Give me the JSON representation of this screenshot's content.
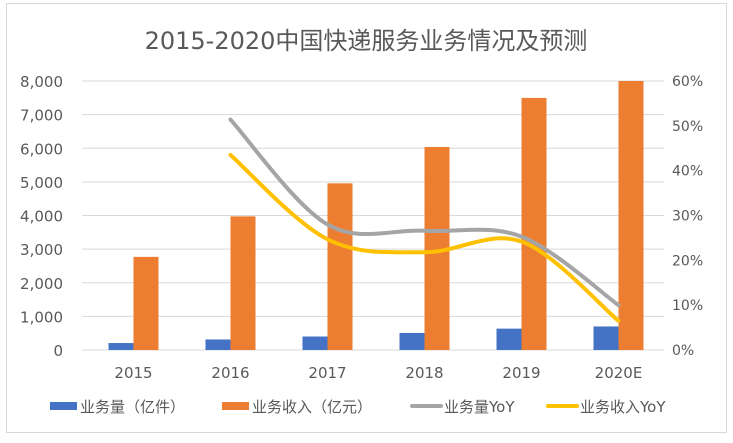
{
  "chart_data": {
    "type": "bar",
    "title": "2015-2020中国快递服务业务情况及预测",
    "categories": [
      "2015",
      "2016",
      "2017",
      "2018",
      "2019",
      "2020E"
    ],
    "series": [
      {
        "name": "业务量（亿件）",
        "type": "bar",
        "axis": "left",
        "color": "#4472C4",
        "values": [
          207,
          313,
          401,
          507,
          635,
          700
        ]
      },
      {
        "name": "业务收入（亿元）",
        "type": "bar",
        "axis": "left",
        "color": "#ED7D31",
        "values": [
          2770,
          3974,
          4957,
          6038,
          7497,
          8000
        ]
      },
      {
        "name": "业务量YoY",
        "type": "line",
        "axis": "right",
        "color": "#A5A5A5",
        "values": [
          null,
          51.4,
          28.0,
          26.6,
          25.3,
          10.0
        ]
      },
      {
        "name": "业务收入YoY",
        "type": "line",
        "axis": "right",
        "color": "#FFC000",
        "values": [
          null,
          43.5,
          24.7,
          21.8,
          24.2,
          6.5
        ]
      }
    ],
    "y_left": {
      "range": [
        0,
        8000
      ],
      "ticks": [
        "0",
        "1,000",
        "2,000",
        "3,000",
        "4,000",
        "5,000",
        "6,000",
        "7,000",
        "8,000"
      ]
    },
    "y_right": {
      "range": [
        0,
        60
      ],
      "ticks": [
        "0%",
        "10%",
        "20%",
        "30%",
        "40%",
        "50%",
        "60%"
      ]
    },
    "grid": true,
    "legend_position": "bottom"
  }
}
